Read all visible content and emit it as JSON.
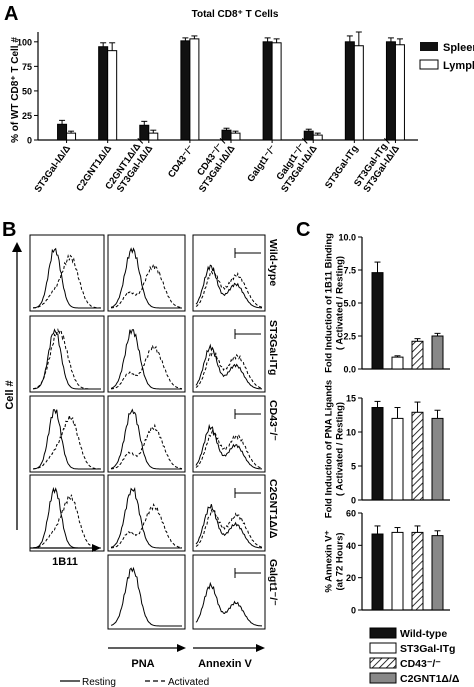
{
  "panelA": {
    "letter": "A",
    "chart_data": {
      "type": "bar",
      "title": "Total CD8⁺ T Cells",
      "ylabel": "% of WT CD8⁺ T Cell #",
      "ylim": [
        0,
        110
      ],
      "yticks": [
        "0",
        "25",
        "50",
        "75",
        "100"
      ],
      "categories": [
        "ST3Gal-IΔ/Δ",
        "C2GNT1Δ/Δ",
        "C2GNT1Δ/Δ / ST3Gal-IΔ/Δ",
        "CD43⁻/⁻",
        "CD43⁻/⁻ / ST3Gal-IΔ/Δ",
        "Galgt1⁻/⁻",
        "Galgt1⁻/⁻ / ST3Gal-IΔ/Δ",
        "ST3Gal-ITg",
        "ST3Gal-ITg / ST3Gal-IΔ/Δ"
      ],
      "series": [
        {
          "name": "Spleen",
          "values": [
            16,
            95,
            15,
            101,
            10,
            100,
            9,
            100,
            100
          ],
          "errors": [
            4,
            4,
            4,
            3,
            2,
            4,
            2,
            6,
            4
          ]
        },
        {
          "name": "Lymph Nodes",
          "values": [
            7,
            91,
            7,
            103,
            7,
            99,
            5,
            96,
            97
          ],
          "errors": [
            2,
            8,
            3,
            3,
            2,
            4,
            2,
            14,
            6
          ]
        }
      ],
      "legend": [
        "Spleen",
        "Lymph Nodes"
      ]
    }
  },
  "panelB": {
    "letter": "B",
    "y_axis_label": "Cell #",
    "column_labels": [
      "1B11",
      "PNA",
      "Annexin V"
    ],
    "row_labels": [
      "Wild-type",
      "ST3Gal-ITg",
      "CD43⁻/⁻",
      "C2GNT1Δ/Δ",
      "Galgt1⁻/⁻"
    ],
    "legend": {
      "resting": "Resting",
      "activated": "Activated"
    }
  },
  "panelC": {
    "letter": "C",
    "charts": [
      {
        "type": "bar",
        "ylabel": "Fold Induction of 1B11 Binding ( Activated / Resting)",
        "ylim": [
          0,
          10
        ],
        "yticks": [
          "0.0",
          "2.5",
          "5.0",
          "7.5",
          "10.0"
        ],
        "values": [
          7.3,
          0.9,
          2.1,
          2.5
        ],
        "errors": [
          0.8,
          0.1,
          0.2,
          0.2
        ]
      },
      {
        "type": "bar",
        "ylabel": "Fold Induction of PNA Ligands ( Activated / Resting)",
        "ylim": [
          0,
          15
        ],
        "yticks": [
          "0",
          "5",
          "10",
          "15"
        ],
        "values": [
          13.6,
          12.0,
          12.9,
          12.0
        ],
        "errors": [
          0.9,
          1.6,
          1.5,
          1.2
        ]
      },
      {
        "type": "bar",
        "ylabel": "% Annexin V⁺ (at 72 Hours)",
        "ylim": [
          0,
          60
        ],
        "yticks": [
          "0",
          "20",
          "40",
          "60"
        ],
        "values": [
          47,
          48,
          48,
          46
        ],
        "errors": [
          5,
          3,
          4,
          3
        ]
      }
    ],
    "legend": [
      "Wild-type",
      "ST3Gal-ITg",
      "CD43⁻/⁻",
      "C2GNT1Δ/Δ"
    ]
  },
  "colors": {
    "black": "#111111",
    "white": "#ffffff",
    "gray": "#888888"
  }
}
